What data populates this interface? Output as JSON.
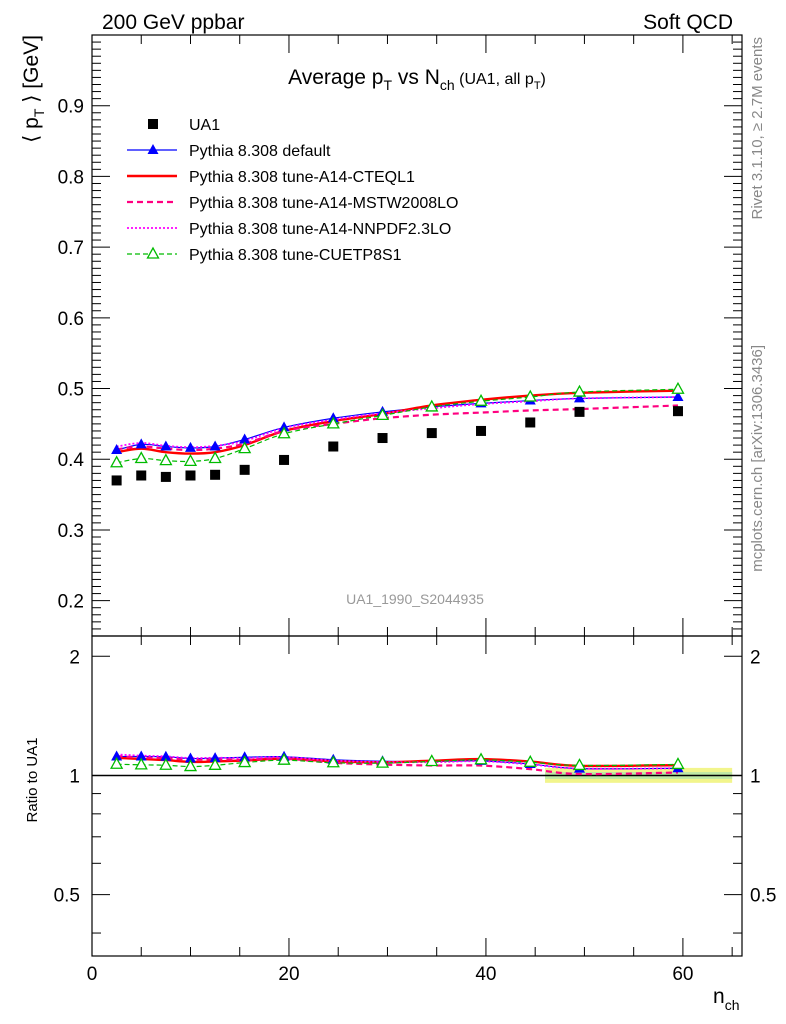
{
  "header": {
    "left": "200 GeV ppbar",
    "right": "Soft QCD"
  },
  "side_labels": {
    "rivet": "Rivet 3.1.10, ≥ 2.7M events",
    "mcplots": "mcplots.cern.ch [arXiv:1306.3436]"
  },
  "chart_data": [
    {
      "type": "scatter",
      "panel": "main",
      "title": {
        "main_pre": "Average p",
        "main_sub1": "T",
        "main_mid": " vs N",
        "main_sub2": "ch",
        "small_pre": " (UA1, all p",
        "small_sub": "T",
        "small_post": ")"
      },
      "ylabel": {
        "pre": "⟨ p",
        "sub": "T",
        "post": " ⟩ [GeV]"
      },
      "watermark": "UA1_1990_S2044935",
      "xlim": [
        0,
        66
      ],
      "ylim": [
        0.15,
        1.0
      ],
      "yticks": [
        {
          "v": 0.2,
          "label": "0.2"
        },
        {
          "v": 0.3,
          "label": "0.3"
        },
        {
          "v": 0.4,
          "label": "0.4"
        },
        {
          "v": 0.5,
          "label": "0.5"
        },
        {
          "v": 0.6,
          "label": "0.6"
        },
        {
          "v": 0.7,
          "label": "0.7"
        },
        {
          "v": 0.8,
          "label": "0.8"
        },
        {
          "v": 0.9,
          "label": "0.9"
        }
      ],
      "x": [
        2.5,
        5,
        7.5,
        10,
        12.5,
        15.5,
        19.5,
        24.5,
        29.5,
        34.5,
        39.5,
        44.5,
        49.5,
        59.5
      ],
      "series": [
        {
          "name": "UA1",
          "style": "data",
          "color": "#000000",
          "values": [
            0.37,
            0.377,
            0.375,
            0.377,
            0.378,
            0.385,
            0.399,
            0.418,
            0.43,
            0.437,
            0.44,
            0.452,
            0.467,
            0.468
          ]
        },
        {
          "name": "Pythia 8.308 default",
          "style": "blue-tri",
          "color": "#0000ff",
          "values": [
            0.413,
            0.421,
            0.418,
            0.416,
            0.418,
            0.428,
            0.445,
            0.458,
            0.467,
            0.474,
            0.479,
            0.483,
            0.486,
            0.488
          ]
        },
        {
          "name": "Pythia 8.308 tune-A14-CTEQL1",
          "style": "red-solid",
          "color": "#ff0000",
          "values": [
            0.41,
            0.415,
            0.41,
            0.408,
            0.41,
            0.42,
            0.44,
            0.454,
            0.464,
            0.476,
            0.484,
            0.49,
            0.494,
            0.497
          ]
        },
        {
          "name": "Pythia 8.308 tune-A14-MSTW2008LO",
          "style": "pink-dashed",
          "color": "#ff0080",
          "values": [
            0.414,
            0.418,
            0.415,
            0.413,
            0.415,
            0.422,
            0.44,
            0.45,
            0.458,
            0.463,
            0.466,
            0.469,
            0.471,
            0.476
          ]
        },
        {
          "name": "Pythia 8.308 tune-A14-NNPDF2.3LO",
          "style": "magenta-dotted",
          "color": "#ff00ff",
          "values": [
            0.418,
            0.423,
            0.419,
            0.417,
            0.419,
            0.426,
            0.444,
            0.456,
            0.465,
            0.472,
            0.478,
            0.482,
            0.486,
            0.488
          ]
        },
        {
          "name": "Pythia 8.308 tune-CUETP8S1",
          "style": "green-open-tri",
          "color": "#00bb00",
          "values": [
            0.395,
            0.401,
            0.398,
            0.397,
            0.401,
            0.415,
            0.436,
            0.45,
            0.462,
            0.474,
            0.482,
            0.488,
            0.495,
            0.499
          ]
        }
      ]
    },
    {
      "type": "scatter",
      "panel": "ratio",
      "ylabel": "Ratio to UA1",
      "xlabel": {
        "main": "n",
        "sub": "ch"
      },
      "xlim": [
        0,
        66
      ],
      "ylim": [
        0.35,
        2.25
      ],
      "xticks": [
        {
          "v": 0,
          "label": "0"
        },
        {
          "v": 20,
          "label": "20"
        },
        {
          "v": 40,
          "label": "40"
        },
        {
          "v": 60,
          "label": "60"
        }
      ],
      "yticks": [
        {
          "v": 0.5,
          "label": "0.5"
        },
        {
          "v": 1,
          "label": "1"
        },
        {
          "v": 2,
          "label": "2"
        }
      ],
      "reference": 1.0
    }
  ]
}
